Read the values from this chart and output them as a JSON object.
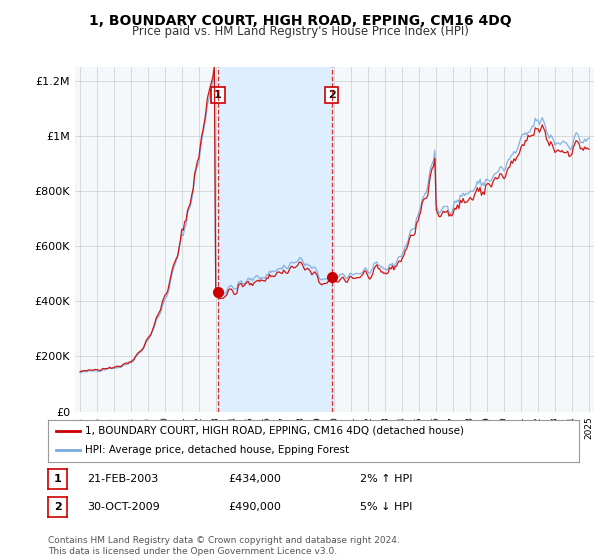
{
  "title": "1, BOUNDARY COURT, HIGH ROAD, EPPING, CM16 4DQ",
  "subtitle": "Price paid vs. HM Land Registry's House Price Index (HPI)",
  "legend_line1": "1, BOUNDARY COURT, HIGH ROAD, EPPING, CM16 4DQ (detached house)",
  "legend_line2": "HPI: Average price, detached house, Epping Forest",
  "transaction1_date": "21-FEB-2003",
  "transaction1_price": "£434,000",
  "transaction1_hpi": "2% ↑ HPI",
  "transaction2_date": "30-OCT-2009",
  "transaction2_price": "£490,000",
  "transaction2_hpi": "5% ↓ HPI",
  "footer": "Contains HM Land Registry data © Crown copyright and database right 2024.\nThis data is licensed under the Open Government Licence v3.0.",
  "property_color": "#cc0000",
  "hpi_color": "#7aaadd",
  "highlight_color": "#ddeeff",
  "background_plot": "#f0f4f8",
  "background_fig": "#ffffff",
  "grid_color": "#cccccc",
  "ylim": [
    0,
    1250000
  ],
  "yticks": [
    0,
    200000,
    400000,
    600000,
    800000,
    1000000,
    1200000
  ],
  "t1_year": 2003.125,
  "t2_year": 2009.833,
  "price_t1": 434000,
  "price_t2": 490000
}
